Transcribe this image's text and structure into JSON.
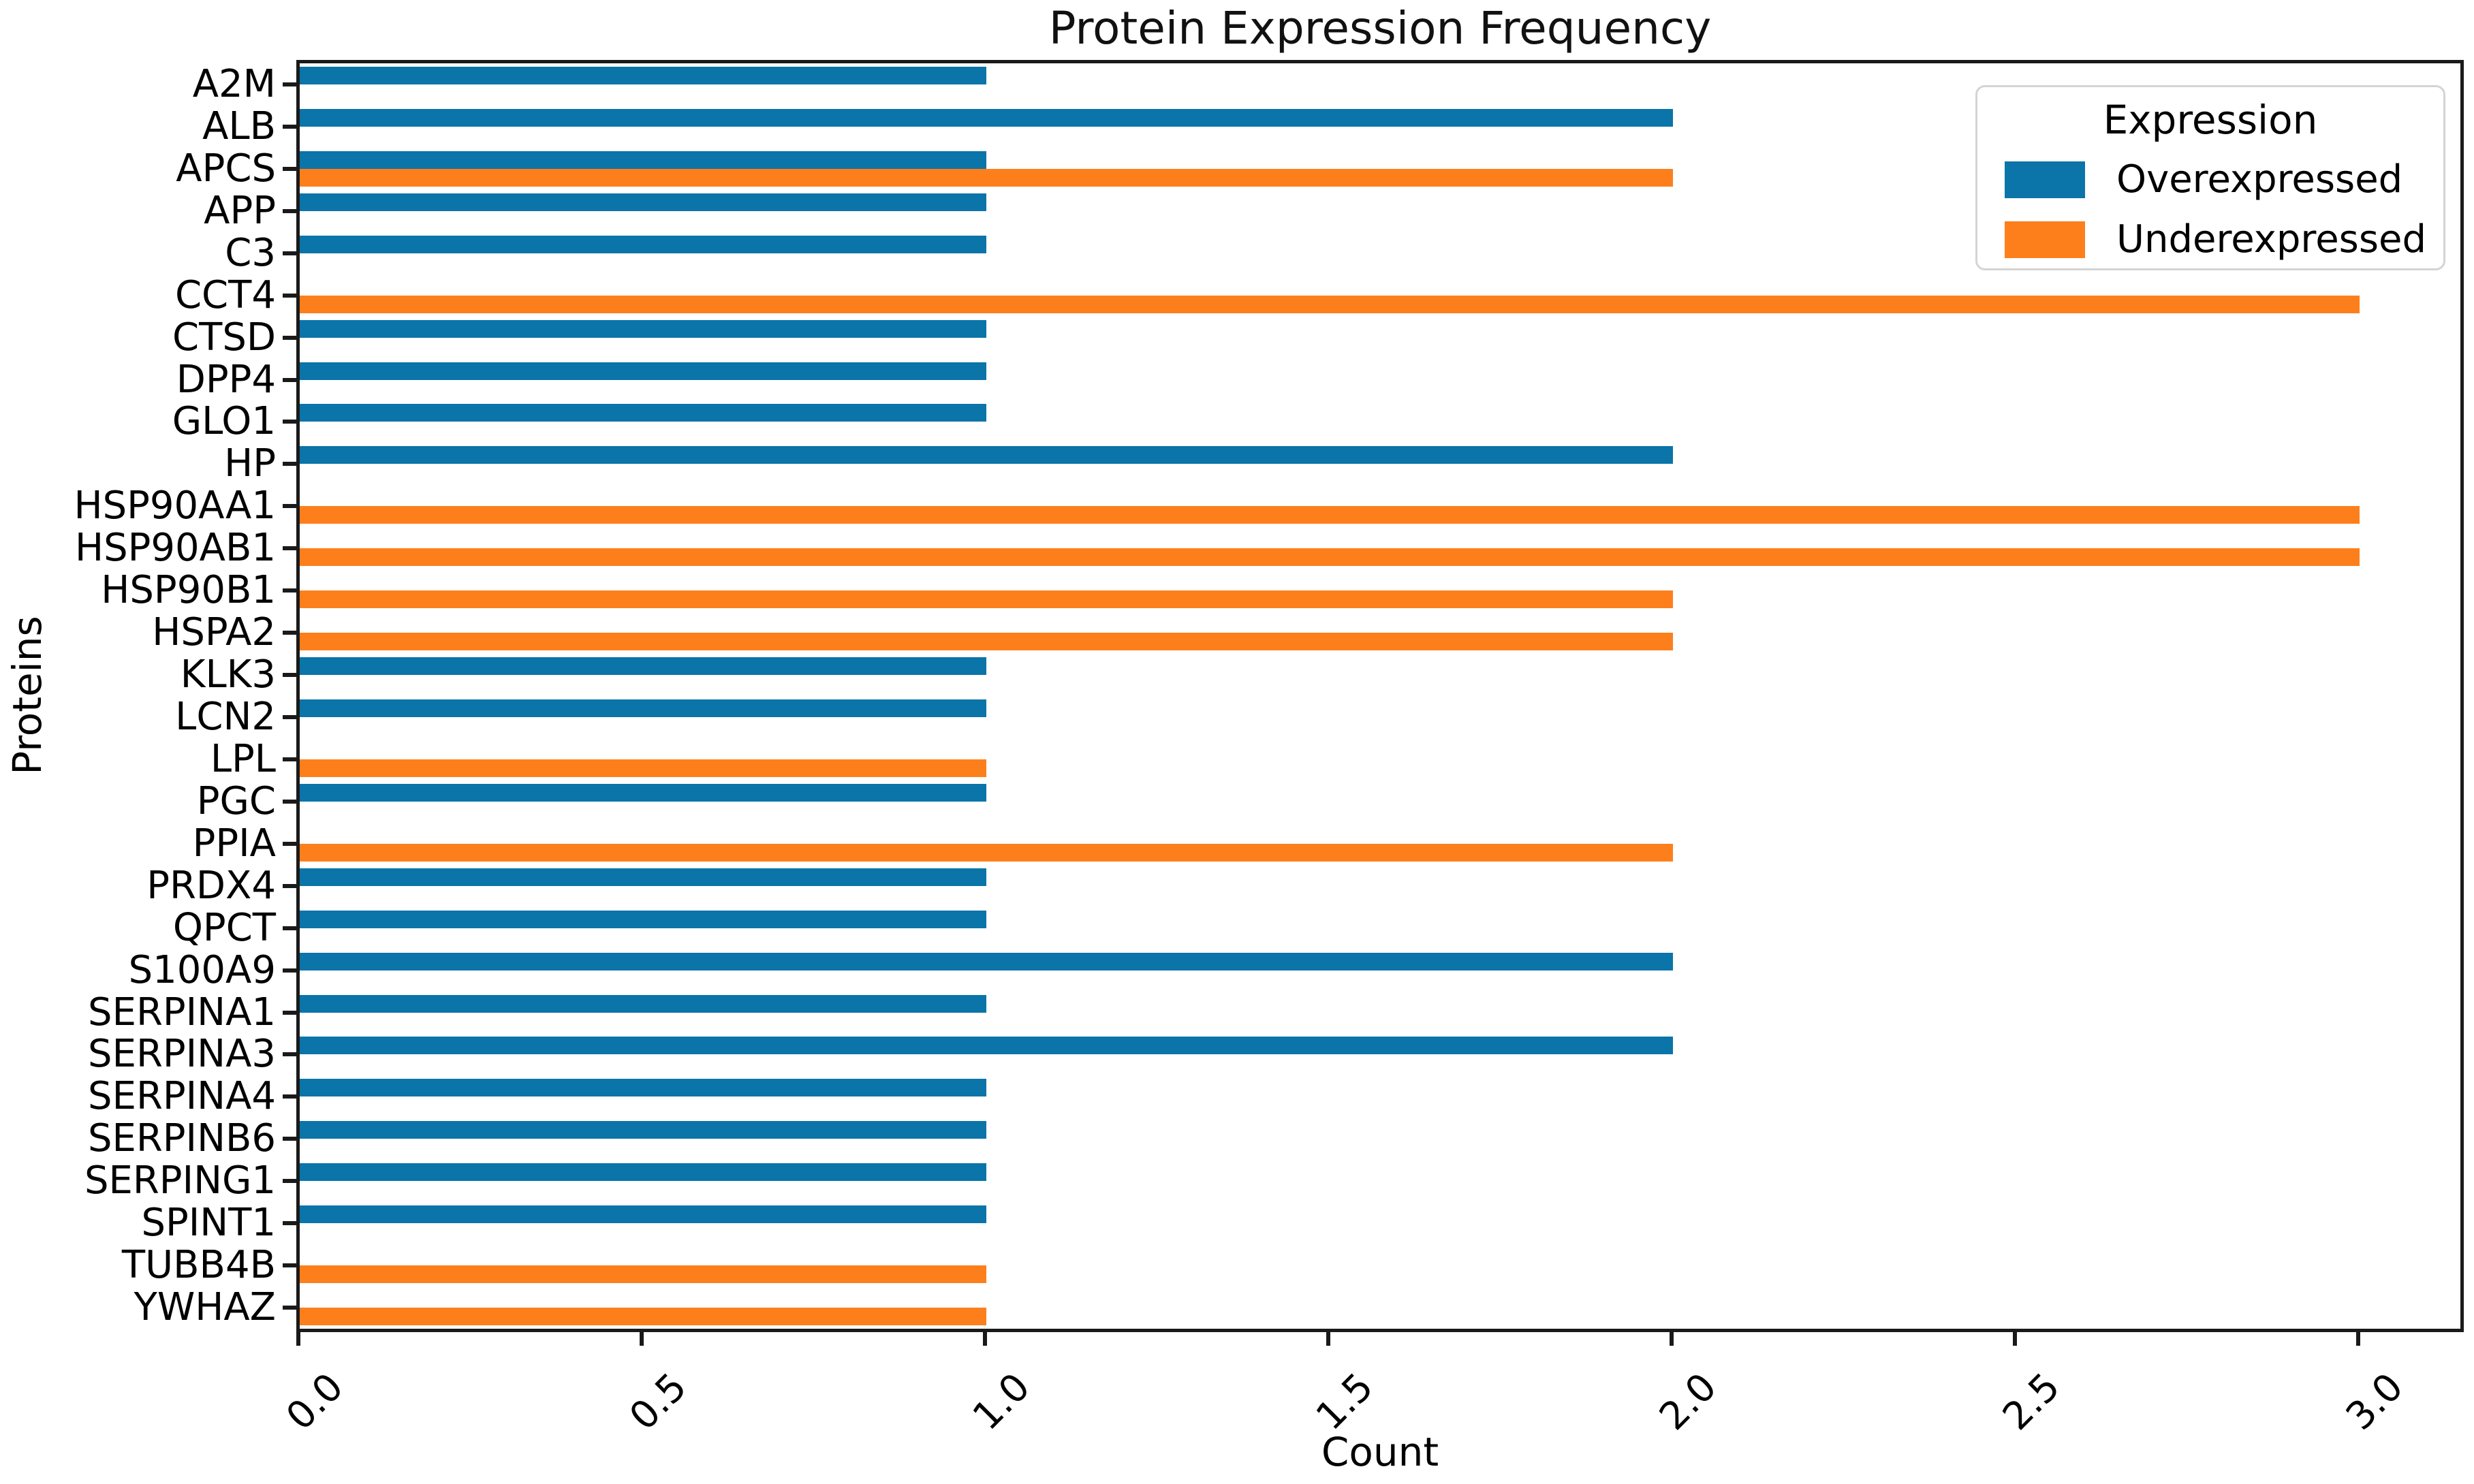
{
  "chart_data": {
    "type": "bar",
    "orientation": "horizontal",
    "title": "Protein Expression Frequency",
    "xlabel": "Count",
    "ylabel": "Proteins",
    "grid": false,
    "xlim": [
      0,
      3.15
    ],
    "xticks": [
      0.0,
      0.5,
      1.0,
      1.5,
      2.0,
      2.5,
      3.0
    ],
    "xtick_labels": [
      "0.0",
      "0.5",
      "1.0",
      "1.5",
      "2.0",
      "2.5",
      "3.0"
    ],
    "xtick_rotation_deg": 45,
    "categories": [
      "A2M",
      "ALB",
      "APCS",
      "APP",
      "C3",
      "CCT4",
      "CTSD",
      "DPP4",
      "GLO1",
      "HP",
      "HSP90AA1",
      "HSP90AB1",
      "HSP90B1",
      "HSPA2",
      "KLK3",
      "LCN2",
      "LPL",
      "PGC",
      "PPIA",
      "PRDX4",
      "QPCT",
      "S100A9",
      "SERPINA1",
      "SERPINA3",
      "SERPINA4",
      "SERPINB6",
      "SERPING1",
      "SPINT1",
      "TUBB4B",
      "YWHAZ"
    ],
    "series": [
      {
        "name": "Overexpressed",
        "color": "#0b74a8",
        "values": [
          1,
          2,
          1,
          1,
          1,
          0,
          1,
          1,
          1,
          2,
          0,
          0,
          0,
          0,
          1,
          1,
          0,
          1,
          0,
          1,
          1,
          2,
          1,
          2,
          1,
          1,
          1,
          1,
          0,
          0
        ]
      },
      {
        "name": "Underexpressed",
        "color": "#fd7f1c",
        "values": [
          0,
          0,
          2,
          0,
          0,
          3,
          0,
          0,
          0,
          0,
          3,
          3,
          2,
          2,
          0,
          0,
          1,
          0,
          2,
          0,
          0,
          0,
          0,
          0,
          0,
          0,
          0,
          0,
          1,
          1
        ]
      }
    ],
    "legend": {
      "title": "Expression",
      "position": "upper right"
    }
  }
}
